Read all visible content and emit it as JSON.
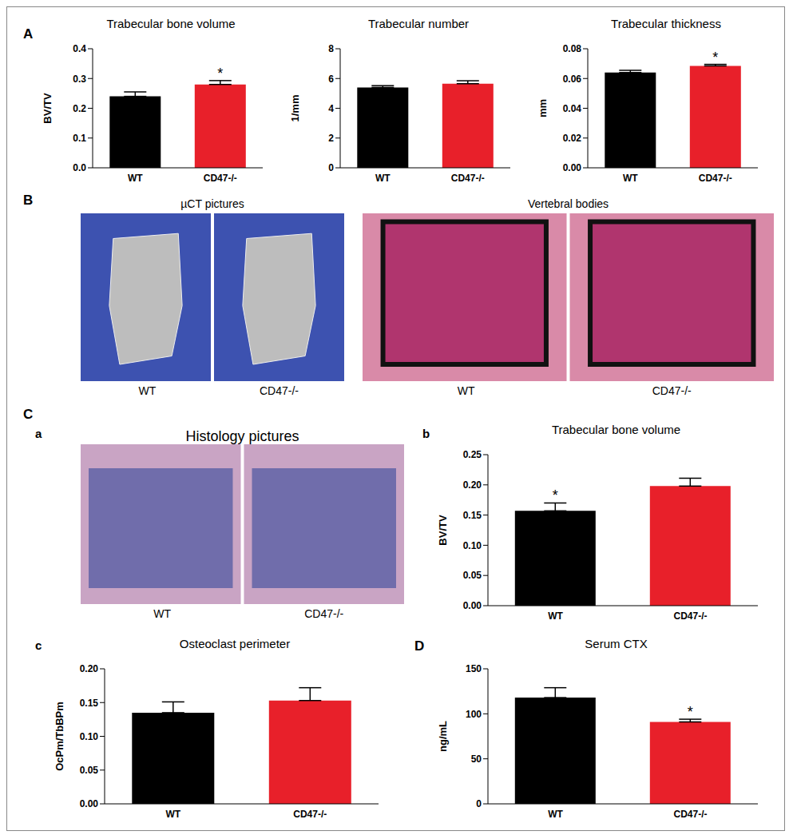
{
  "chart_data": [
    {
      "type": "bar",
      "title": "Trabecular bone volume",
      "y_label": "BV/TV",
      "categories": [
        "WT",
        "CD47-/-"
      ],
      "values": [
        0.24,
        0.28
      ],
      "errors": [
        0.015,
        0.013
      ],
      "colors": [
        "#000000",
        "#e8202a"
      ],
      "ylim": [
        0,
        0.4
      ],
      "yticks": [
        {
          "value": 0,
          "label": "0.0"
        },
        0.1,
        0.2,
        0.3,
        0.4
      ],
      "annotations": [
        {
          "category": "CD47-/-",
          "text": "*"
        }
      ]
    },
    {
      "type": "bar",
      "title": "Trabecular number",
      "y_label": "1/mm",
      "categories": [
        "WT",
        "CD47-/-"
      ],
      "values": [
        5.4,
        5.65
      ],
      "errors": [
        0.12,
        0.2
      ],
      "colors": [
        "#000000",
        "#e8202a"
      ],
      "ylim": [
        0,
        8
      ],
      "yticks": [
        0,
        2,
        4,
        6,
        8
      ],
      "annotations": []
    },
    {
      "type": "bar",
      "title": "Trabecular thickness",
      "y_label": "mm",
      "categories": [
        "WT",
        "CD47-/-"
      ],
      "values": [
        0.064,
        0.0685
      ],
      "errors": [
        0.0015,
        0.001
      ],
      "colors": [
        "#000000",
        "#e8202a"
      ],
      "ylim": [
        0,
        0.08
      ],
      "yticks": [
        {
          "value": 0,
          "label": "0.00"
        },
        0.02,
        0.04,
        0.06,
        0.08
      ],
      "annotations": [
        {
          "category": "CD47-/-",
          "text": "*"
        }
      ]
    },
    {
      "type": "bar",
      "title": "Trabecular bone volume",
      "y_label": "BV/TV",
      "categories": [
        "WT",
        "CD47-/-"
      ],
      "values": [
        0.157,
        0.198
      ],
      "errors": [
        0.013,
        0.013
      ],
      "colors": [
        "#000000",
        "#e8202a"
      ],
      "ylim": [
        0,
        0.25
      ],
      "yticks": [
        {
          "value": 0,
          "label": "0.00"
        },
        0.05,
        {
          "value": 0.1,
          "label": "0.10"
        },
        0.15,
        {
          "value": 0.2,
          "label": "0.20"
        },
        0.25
      ],
      "annotations": [
        {
          "category": "WT",
          "text": "*"
        }
      ]
    },
    {
      "type": "bar",
      "title": "Osteoclast perimeter",
      "y_label": "OcPm/TbBPm",
      "categories": [
        "WT",
        "CD47-/-"
      ],
      "values": [
        0.135,
        0.153
      ],
      "errors": [
        0.016,
        0.019
      ],
      "colors": [
        "#000000",
        "#e8202a"
      ],
      "ylim": [
        0,
        0.2
      ],
      "yticks": [
        {
          "value": 0,
          "label": "0.00"
        },
        0.05,
        {
          "value": 0.1,
          "label": "0.10"
        },
        0.15,
        {
          "value": 0.2,
          "label": "0.20"
        }
      ],
      "annotations": []
    },
    {
      "type": "bar",
      "title": "Serum CTX",
      "y_label": "ng/mL",
      "categories": [
        "WT",
        "CD47-/-"
      ],
      "values": [
        118,
        91
      ],
      "errors": [
        11,
        3
      ],
      "colors": [
        "#000000",
        "#e8202a"
      ],
      "ylim": [
        0,
        150
      ],
      "yticks": [
        0,
        50,
        100,
        150
      ],
      "annotations": [
        {
          "category": "CD47-/-",
          "text": "*"
        }
      ]
    }
  ],
  "images": [
    {
      "title": "µCT pictures",
      "labels": [
        "WT",
        "CD47-/-"
      ]
    },
    {
      "title": "Vertebral bodies",
      "labels": [
        "WT",
        "CD47-/-"
      ]
    },
    {
      "title": "Histology pictures",
      "labels": [
        "WT",
        "CD47-/-"
      ]
    }
  ],
  "panel_labels": [
    "A",
    "B",
    "C",
    "a",
    "b",
    "c",
    "D"
  ]
}
